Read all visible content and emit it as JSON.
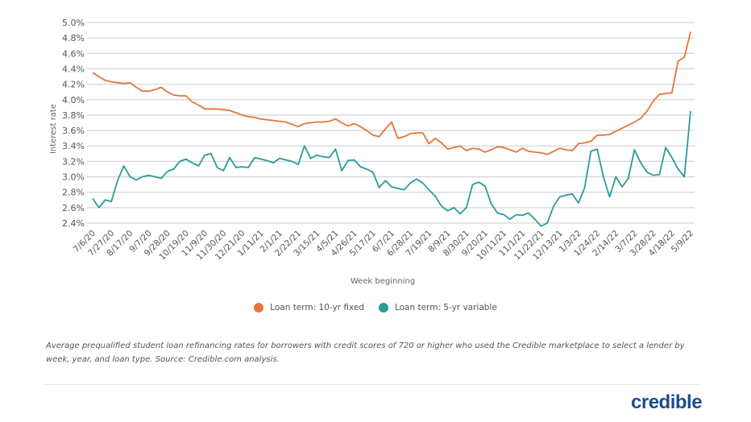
{
  "chart_data": {
    "type": "line",
    "title": "",
    "xlabel": "Week beginning",
    "ylabel": "Interest rate",
    "ylim": [
      2.4,
      5.0
    ],
    "y_ticks": [
      "2.4%",
      "2.6%",
      "2.8%",
      "3.0%",
      "3.2%",
      "3.4%",
      "3.6%",
      "3.8%",
      "4.0%",
      "4.2%",
      "4.4%",
      "4.6%",
      "4.8%",
      "5.0%"
    ],
    "grid": true,
    "legend_position": "bottom",
    "x": [
      "7/6/20",
      "7/13/20",
      "7/20/20",
      "7/27/20",
      "8/3/20",
      "8/10/20",
      "8/17/20",
      "8/24/20",
      "8/31/20",
      "9/7/20",
      "9/14/20",
      "9/21/20",
      "9/28/20",
      "10/5/20",
      "10/12/20",
      "10/19/20",
      "10/26/20",
      "11/2/20",
      "11/9/20",
      "11/16/20",
      "11/23/20",
      "11/30/20",
      "12/7/20",
      "12/14/20",
      "12/21/20",
      "12/28/20",
      "1/4/21",
      "1/11/21",
      "1/18/21",
      "1/25/21",
      "2/1/21",
      "2/8/21",
      "2/15/21",
      "2/22/21",
      "3/1/21",
      "3/8/21",
      "3/15/21",
      "3/22/21",
      "3/29/21",
      "4/5/21",
      "4/12/21",
      "4/19/21",
      "4/26/21",
      "5/3/21",
      "5/10/21",
      "5/17/21",
      "5/24/21",
      "5/31/21",
      "6/7/21",
      "6/14/21",
      "6/21/21",
      "6/28/21",
      "7/5/21",
      "7/12/21",
      "7/19/21",
      "7/26/21",
      "8/2/21",
      "8/9/21",
      "8/16/21",
      "8/23/21",
      "8/30/21",
      "9/6/21",
      "9/13/21",
      "9/20/21",
      "9/27/21",
      "10/4/21",
      "10/11/21",
      "10/18/21",
      "10/25/21",
      "11/1/21",
      "11/8/21",
      "11/15/21",
      "11/22/21",
      "11/29/21",
      "12/6/21",
      "12/13/21",
      "12/20/21",
      "12/27/21",
      "1/3/22",
      "1/10/22",
      "1/17/22",
      "1/24/22",
      "1/31/22",
      "2/7/22",
      "2/14/22",
      "2/21/22",
      "2/28/22",
      "3/7/22",
      "3/14/22",
      "3/21/22",
      "3/28/22",
      "4/4/22",
      "4/11/22",
      "4/18/22",
      "4/25/22",
      "5/2/22",
      "5/9/22"
    ],
    "series": [
      {
        "name": "Loan term: 10-yr fixed",
        "color": "#e8743b",
        "values": [
          4.35,
          4.3,
          4.25,
          4.23,
          4.22,
          4.21,
          4.22,
          4.16,
          4.11,
          4.11,
          4.13,
          4.16,
          4.1,
          4.06,
          4.05,
          4.05,
          3.97,
          3.93,
          3.88,
          3.88,
          3.88,
          3.87,
          3.86,
          3.83,
          3.8,
          3.78,
          3.77,
          3.75,
          3.74,
          3.73,
          3.72,
          3.71,
          3.68,
          3.65,
          3.69,
          3.7,
          3.71,
          3.71,
          3.72,
          3.75,
          3.7,
          3.66,
          3.69,
          3.65,
          3.6,
          3.54,
          3.52,
          3.62,
          3.71,
          3.5,
          3.52,
          3.56,
          3.57,
          3.57,
          3.43,
          3.5,
          3.44,
          3.36,
          3.38,
          3.4,
          3.34,
          3.37,
          3.36,
          3.32,
          3.35,
          3.39,
          3.38,
          3.35,
          3.32,
          3.37,
          3.33,
          3.32,
          3.31,
          3.29,
          3.33,
          3.37,
          3.35,
          3.34,
          3.43,
          3.44,
          3.46,
          3.54,
          3.54,
          3.55,
          3.59,
          3.63,
          3.67,
          3.71,
          3.76,
          3.85,
          3.98,
          4.07,
          4.08,
          4.09,
          4.5,
          4.55,
          4.88
        ]
      },
      {
        "name": "Loan term: 5-yr variable",
        "color": "#2a9d96",
        "values": [
          2.72,
          2.6,
          2.7,
          2.68,
          2.95,
          3.14,
          3.0,
          2.96,
          3.0,
          3.02,
          3.0,
          2.98,
          3.07,
          3.1,
          3.2,
          3.23,
          3.18,
          3.14,
          3.28,
          3.3,
          3.12,
          3.08,
          3.25,
          3.12,
          3.13,
          3.12,
          3.25,
          3.23,
          3.21,
          3.18,
          3.24,
          3.22,
          3.2,
          3.16,
          3.4,
          3.24,
          3.28,
          3.26,
          3.25,
          3.36,
          3.08,
          3.21,
          3.22,
          3.13,
          3.1,
          3.06,
          2.86,
          2.95,
          2.87,
          2.85,
          2.83,
          2.92,
          2.97,
          2.92,
          2.83,
          2.75,
          2.62,
          2.56,
          2.6,
          2.52,
          2.6,
          2.9,
          2.93,
          2.88,
          2.65,
          2.53,
          2.51,
          2.45,
          2.51,
          2.5,
          2.53,
          2.45,
          2.36,
          2.4,
          2.62,
          2.74,
          2.76,
          2.78,
          2.66,
          2.86,
          3.33,
          3.36,
          3.0,
          2.74,
          3.0,
          2.87,
          2.98,
          3.35,
          3.18,
          3.06,
          3.02,
          3.03,
          3.38,
          3.25,
          3.1,
          3.0,
          3.85
        ]
      }
    ]
  },
  "caption": "Average prequalified student loan refinancing rates for borrowers with credit scores of 720 or higher who used the Credible marketplace to select a lender by week, year, and loan type. Source: Credible.com analysis.",
  "logo_text": "credible"
}
